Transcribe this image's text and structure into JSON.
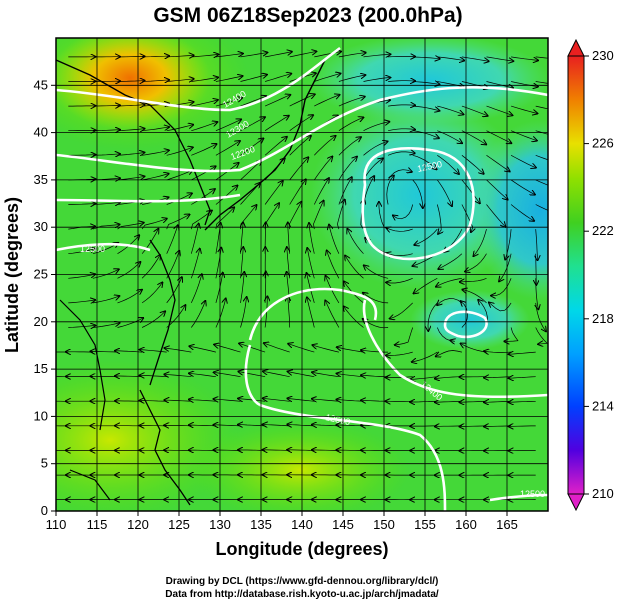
{
  "title": "GSM 06Z18Sep2023 (200.0hPa)",
  "x_axis": {
    "label": "Longitude (degrees)",
    "range": [
      110,
      170
    ],
    "ticks": [
      "110",
      "115",
      "120",
      "125",
      "130",
      "135",
      "140",
      "145",
      "150",
      "155",
      "160",
      "165"
    ]
  },
  "y_axis": {
    "label": "Latitude  (degrees)",
    "range": [
      0,
      50
    ],
    "ticks": [
      "0",
      "5",
      "10",
      "15",
      "20",
      "25",
      "30",
      "35",
      "40",
      "45"
    ]
  },
  "colorbar": {
    "range": [
      210,
      230
    ],
    "ticks": [
      "210",
      "214",
      "218",
      "222",
      "226",
      "230"
    ],
    "colors": [
      "#e020c8",
      "#5000e0",
      "#0040ff",
      "#00b8ff",
      "#10e8c0",
      "#30d040",
      "#60e000",
      "#a8e000",
      "#f0d000",
      "#f08000",
      "#e02020"
    ]
  },
  "contour_labels": [
    "12500",
    "12400",
    "12300",
    "12200",
    "12500",
    "12400",
    "12500",
    "12500"
  ],
  "credits": {
    "line1": "Drawing by DCL (https://www.gfd-dennou.org/library/dcl/)",
    "line2": "Data from http://database.rish.kyoto-u.ac.jp/arch/jmadata/"
  },
  "chart_data": {
    "type": "heatmap",
    "variable": "temperature with streamlines and geopotential height contours",
    "lon_range": [
      110,
      170
    ],
    "lat_range": [
      0,
      50
    ],
    "value_range": [
      210,
      230
    ],
    "anticyclone_center": {
      "lon": 152,
      "lat": 35
    },
    "small_vortex_center": {
      "lon": 158,
      "lat": 21
    },
    "warm_maximum": {
      "lon": 118,
      "lat": 46,
      "value": 228
    },
    "cool_region": {
      "lon": 168,
      "lat": 32,
      "value": 219
    }
  }
}
